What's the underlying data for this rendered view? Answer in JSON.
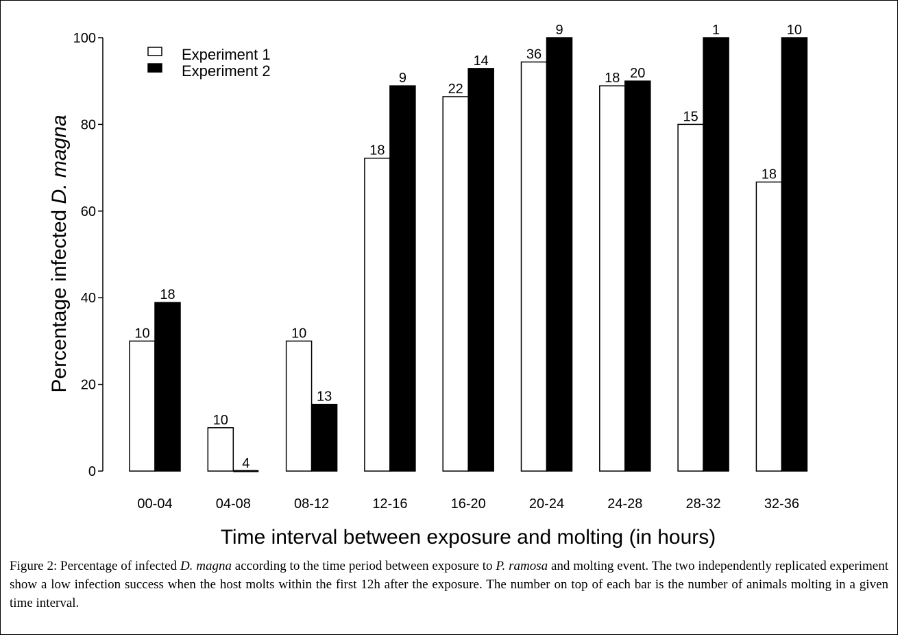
{
  "chart_data": {
    "type": "bar",
    "categories": [
      "00-04",
      "04-08",
      "08-12",
      "12-16",
      "16-20",
      "20-24",
      "24-28",
      "28-32",
      "32-36"
    ],
    "series": [
      {
        "name": "Experiment 1",
        "fill": "#ffffff",
        "values": [
          30,
          10,
          30,
          72.2,
          86.4,
          94.4,
          88.9,
          80,
          66.7
        ],
        "counts": [
          "10",
          "10",
          "10",
          "18",
          "22",
          "36",
          "18",
          "15",
          "18"
        ]
      },
      {
        "name": "Experiment 2",
        "fill": "#000000",
        "values": [
          38.9,
          0,
          15.4,
          88.9,
          92.9,
          100,
          90,
          100,
          100
        ],
        "counts": [
          "18",
          "4",
          "13",
          "9",
          "14",
          "9",
          "20",
          "1",
          "10"
        ]
      }
    ],
    "ylim": [
      0,
      100
    ],
    "yticks": [
      0,
      20,
      40,
      60,
      80,
      100
    ],
    "ylabel_prefix": "Percentage infected ",
    "ylabel_italic": "D. magna",
    "xlabel": "Time interval between exposure and molting (in hours)",
    "legend_position": "top-left"
  },
  "caption": {
    "p1": "Figure 2: Percentage of infected ",
    "i1": "D. magna",
    "p2": " according to the time period between exposure to ",
    "i2": "P. ramosa",
    "p3": " and molting event. The two independently replicated experiment show a low infection success when the host molts within the first 12h after the exposure. The number on top of each bar is the number of animals molting in a given time interval."
  }
}
